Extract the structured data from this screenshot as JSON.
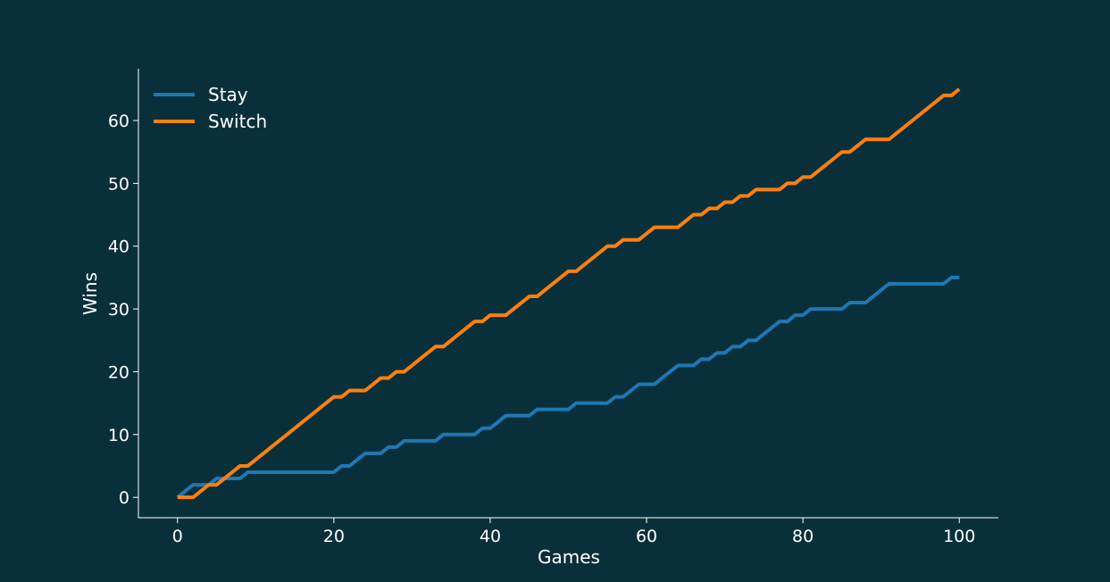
{
  "chart_data": {
    "type": "line",
    "title": "",
    "xlabel": "Games",
    "ylabel": "Wins",
    "xlim": [
      -5,
      105
    ],
    "ylim": [
      -3.25,
      68.25
    ],
    "xticks": [
      0,
      20,
      40,
      60,
      80,
      100
    ],
    "yticks": [
      0,
      10,
      20,
      30,
      40,
      50,
      60
    ],
    "grid": false,
    "legend": "top-left",
    "background_color": "#09303a",
    "axis_color": "#ffffff",
    "series": [
      {
        "name": "Stay",
        "color": "#1f77b4",
        "x": [
          0,
          1,
          2,
          3,
          4,
          5,
          6,
          7,
          8,
          9,
          10,
          11,
          12,
          13,
          14,
          15,
          16,
          17,
          18,
          19,
          20,
          21,
          22,
          23,
          24,
          25,
          26,
          27,
          28,
          29,
          30,
          31,
          32,
          33,
          34,
          35,
          36,
          37,
          38,
          39,
          40,
          41,
          42,
          43,
          44,
          45,
          46,
          47,
          48,
          49,
          50,
          51,
          52,
          53,
          54,
          55,
          56,
          57,
          58,
          59,
          60,
          61,
          62,
          63,
          64,
          65,
          66,
          67,
          68,
          69,
          70,
          71,
          72,
          73,
          74,
          75,
          76,
          77,
          78,
          79,
          80,
          81,
          82,
          83,
          84,
          85,
          86,
          87,
          88,
          89,
          90,
          91,
          92,
          93,
          94,
          95,
          96,
          97,
          98,
          99,
          100
        ],
        "values": [
          0,
          1,
          2,
          2,
          2,
          3,
          3,
          3,
          3,
          4,
          4,
          4,
          4,
          4,
          4,
          4,
          4,
          4,
          4,
          4,
          4,
          5,
          5,
          6,
          7,
          7,
          7,
          8,
          8,
          9,
          9,
          9,
          9,
          9,
          10,
          10,
          10,
          10,
          10,
          11,
          11,
          12,
          13,
          13,
          13,
          13,
          14,
          14,
          14,
          14,
          14,
          15,
          15,
          15,
          15,
          15,
          16,
          16,
          17,
          18,
          18,
          18,
          19,
          20,
          21,
          21,
          21,
          22,
          22,
          23,
          23,
          24,
          24,
          25,
          25,
          26,
          27,
          28,
          28,
          29,
          29,
          30,
          30,
          30,
          30,
          30,
          31,
          31,
          31,
          32,
          33,
          34,
          34,
          34,
          34,
          34,
          34,
          34,
          34,
          35,
          35
        ]
      },
      {
        "name": "Switch",
        "color": "#ff7f0e",
        "x": [
          0,
          1,
          2,
          3,
          4,
          5,
          6,
          7,
          8,
          9,
          10,
          11,
          12,
          13,
          14,
          15,
          16,
          17,
          18,
          19,
          20,
          21,
          22,
          23,
          24,
          25,
          26,
          27,
          28,
          29,
          30,
          31,
          32,
          33,
          34,
          35,
          36,
          37,
          38,
          39,
          40,
          41,
          42,
          43,
          44,
          45,
          46,
          47,
          48,
          49,
          50,
          51,
          52,
          53,
          54,
          55,
          56,
          57,
          58,
          59,
          60,
          61,
          62,
          63,
          64,
          65,
          66,
          67,
          68,
          69,
          70,
          71,
          72,
          73,
          74,
          75,
          76,
          77,
          78,
          79,
          80,
          81,
          82,
          83,
          84,
          85,
          86,
          87,
          88,
          89,
          90,
          91,
          92,
          93,
          94,
          95,
          96,
          97,
          98,
          99,
          100
        ],
        "values": [
          0,
          0,
          0,
          1,
          2,
          2,
          3,
          4,
          5,
          5,
          6,
          7,
          8,
          9,
          10,
          11,
          12,
          13,
          14,
          15,
          16,
          16,
          17,
          17,
          17,
          18,
          19,
          19,
          20,
          20,
          21,
          22,
          23,
          24,
          24,
          25,
          26,
          27,
          28,
          28,
          29,
          29,
          29,
          30,
          31,
          32,
          32,
          33,
          34,
          35,
          36,
          36,
          37,
          38,
          39,
          40,
          40,
          41,
          41,
          41,
          42,
          43,
          43,
          43,
          43,
          44,
          45,
          45,
          46,
          46,
          47,
          47,
          48,
          48,
          49,
          49,
          49,
          49,
          50,
          50,
          51,
          51,
          52,
          53,
          54,
          55,
          55,
          56,
          57,
          57,
          57,
          57,
          58,
          59,
          60,
          61,
          62,
          63,
          64,
          64,
          65
        ]
      }
    ]
  }
}
